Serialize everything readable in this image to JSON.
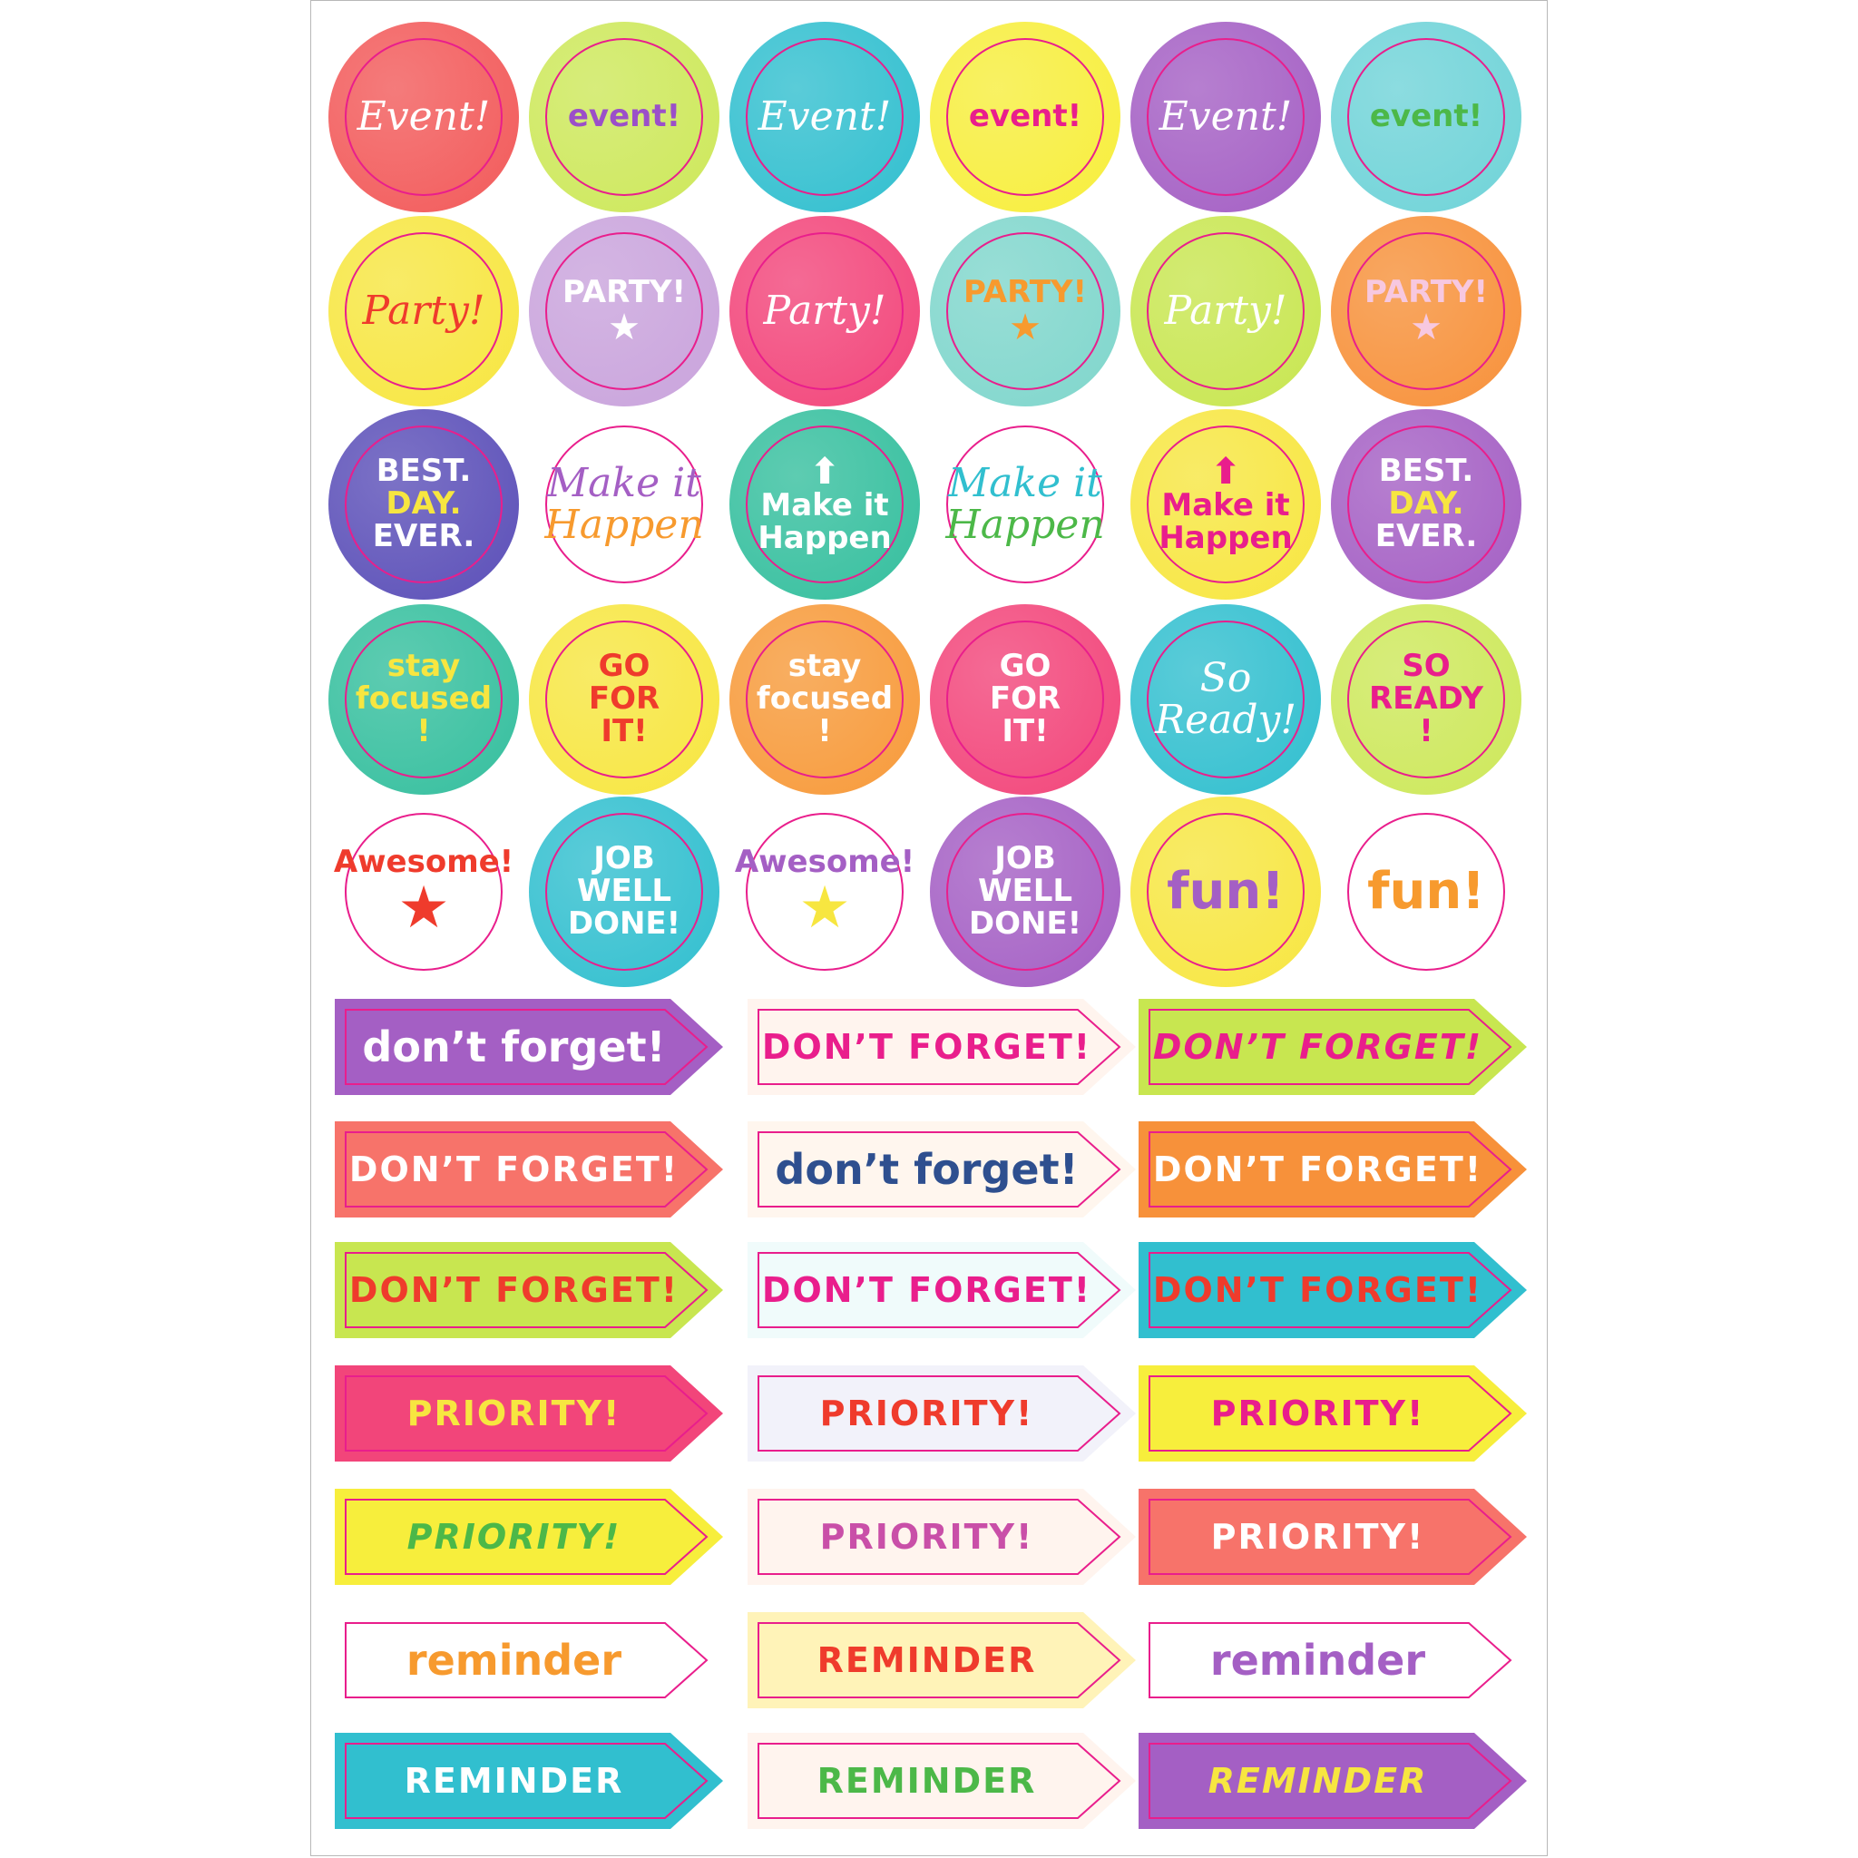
{
  "ring_color": "#e91e8c",
  "circles": [
    [
      {
        "lines": [
          "Event!"
        ],
        "bg": "#f25a5a",
        "color": "#ffffff",
        "style": "script"
      },
      {
        "lines": [
          "event!"
        ],
        "bg": "#cde85a",
        "color": "#9b4fc9",
        "style": "bold"
      },
      {
        "lines": [
          "Event!"
        ],
        "bg": "#31bfcf",
        "color": "#ffffff",
        "style": "script"
      },
      {
        "lines": [
          "event!"
        ],
        "bg": "#f7ee3c",
        "color": "#e91e8c",
        "style": "bold"
      },
      {
        "lines": [
          "Event!"
        ],
        "bg": "#a45fc4",
        "color": "#ffffff",
        "style": "script"
      },
      {
        "lines": [
          "event!"
        ],
        "bg": "#6fd3d8",
        "color": "#4cb848",
        "style": "bold"
      }
    ],
    [
      {
        "lines": [
          "Party!"
        ],
        "bg": "#f7e640",
        "color": "#ef3b2c",
        "style": "script"
      },
      {
        "lines": [
          "PARTY!"
        ],
        "bg": "#c9a3dc",
        "color": "#ffffff",
        "style": "bold",
        "icon": "star-icon"
      },
      {
        "lines": [
          "Party!"
        ],
        "bg": "#f2457a",
        "color": "#ffffff",
        "style": "script"
      },
      {
        "lines": [
          "PARTY!"
        ],
        "bg": "#7fd6cc",
        "color": "#f79a2e",
        "style": "bold",
        "icon": "star-icon"
      },
      {
        "lines": [
          "Party!"
        ],
        "bg": "#c8e650",
        "color": "#ffffff",
        "style": "script"
      },
      {
        "lines": [
          "PARTY!"
        ],
        "bg": "#f7913a",
        "color": "#f7c8e0",
        "style": "bold",
        "icon": "star-icon"
      }
    ],
    [
      {
        "lines": [
          "BEST.",
          "DAY.",
          "EVER."
        ],
        "bg": "#5b4fb8",
        "color": "#ffffff",
        "accent": "#f7e640",
        "style": "bold"
      },
      {
        "lines": [
          "Make it",
          "Happen"
        ],
        "bg": "#ffffff",
        "color": "#a45fc4",
        "accent": "#f79a2e",
        "style": "script"
      },
      {
        "lines": [
          "Make it",
          "Happen"
        ],
        "bg": "#35bf9e",
        "color": "#ffffff",
        "style": "bold",
        "icon": "arrow-up-icon"
      },
      {
        "lines": [
          "Make it",
          "Happen"
        ],
        "bg": "#ffffff",
        "color": "#31bfcf",
        "accent": "#4cb848",
        "style": "script"
      },
      {
        "lines": [
          "Make it",
          "Happen"
        ],
        "bg": "#f7e640",
        "color": "#e91e8c",
        "style": "bold",
        "icon": "arrow-up-icon"
      },
      {
        "lines": [
          "BEST.",
          "DAY.",
          "EVER."
        ],
        "bg": "#a45fc4",
        "color": "#ffffff",
        "accent": "#f7e640",
        "style": "bold"
      }
    ],
    [
      {
        "lines": [
          "stay",
          "focused",
          "!"
        ],
        "bg": "#35bf9e",
        "color": "#f7e640",
        "style": "bold"
      },
      {
        "lines": [
          "GO",
          "FOR",
          "IT!"
        ],
        "bg": "#f7e640",
        "color": "#ef3b2c",
        "style": "bold"
      },
      {
        "lines": [
          "stay",
          "focused",
          "!"
        ],
        "bg": "#f79a3a",
        "color": "#ffffff",
        "style": "bold"
      },
      {
        "lines": [
          "GO",
          "FOR",
          "IT!"
        ],
        "bg": "#f2457a",
        "color": "#ffffff",
        "style": "bold"
      },
      {
        "lines": [
          "So",
          "Ready!"
        ],
        "bg": "#31bfcf",
        "color": "#ffffff",
        "style": "script"
      },
      {
        "lines": [
          "SO",
          "READY",
          "!"
        ],
        "bg": "#cde85a",
        "color": "#e91e8c",
        "style": "bold"
      }
    ],
    [
      {
        "lines": [
          "Awesome!"
        ],
        "bg": "#ffffff",
        "color": "#ef3b2c",
        "style": "bold",
        "icon": "star-icon",
        "icon_color": "#ef3b2c"
      },
      {
        "lines": [
          "JOB",
          "WELL",
          "DONE!"
        ],
        "bg": "#31bfcf",
        "color": "#ffffff",
        "style": "bold"
      },
      {
        "lines": [
          "Awesome!"
        ],
        "bg": "#ffffff",
        "color": "#a45fc4",
        "style": "bold",
        "icon": "star-icon",
        "icon_color": "#f7e640"
      },
      {
        "lines": [
          "JOB",
          "WELL",
          "DONE!"
        ],
        "bg": "#a45fc4",
        "color": "#ffffff",
        "style": "bold"
      },
      {
        "lines": [
          "fun!"
        ],
        "bg": "#f7e640",
        "color": "#a45fc4",
        "style": "big"
      },
      {
        "lines": [
          "fun!"
        ],
        "bg": "#ffffff",
        "color": "#f79a2e",
        "style": "big"
      }
    ]
  ],
  "banners": [
    [
      {
        "text": "don’t forget!",
        "bg": "#a45fc4",
        "color": "#ffffff",
        "style": "lower"
      },
      {
        "text": "DON’T FORGET!",
        "bg": "#fff4ee",
        "color": "#e91e8c",
        "style": "caps"
      },
      {
        "text": "DON’T FORGET!",
        "bg": "#c8e650",
        "color": "#e91e8c",
        "style": "italic"
      }
    ],
    [
      {
        "text": "DON’T FORGET!",
        "bg": "#f7736a",
        "color": "#ffffff",
        "style": "caps"
      },
      {
        "text": "don’t forget!",
        "bg": "#fff6ee",
        "color": "#2e4f8f",
        "style": "lower"
      },
      {
        "text": "DON’T FORGET!",
        "bg": "#f7913a",
        "color": "#ffffff",
        "style": "caps"
      }
    ],
    [
      {
        "text": "DON’T FORGET!",
        "bg": "#c8e650",
        "color": "#ef3b2c",
        "style": "caps"
      },
      {
        "text": "DON’T FORGET!",
        "bg": "#f0fbfb",
        "color": "#e91e8c",
        "style": "caps"
      },
      {
        "text": "DON’T FORGET!",
        "bg": "#31bfcf",
        "color": "#ef3b2c",
        "style": "caps"
      }
    ],
    [
      {
        "text": "PRIORITY!",
        "bg": "#f2457a",
        "color": "#f7e640",
        "style": "caps"
      },
      {
        "text": "PRIORITY!",
        "bg": "#f2f2fa",
        "color": "#ef3b2c",
        "style": "caps"
      },
      {
        "text": "PRIORITY!",
        "bg": "#f7ee3c",
        "color": "#e91e8c",
        "style": "caps"
      }
    ],
    [
      {
        "text": "PRIORITY!",
        "bg": "#f7ee3c",
        "color": "#4cb848",
        "style": "italic"
      },
      {
        "text": "PRIORITY!",
        "bg": "#fff4ee",
        "color": "#c94fa8",
        "style": "caps"
      },
      {
        "text": "PRIORITY!",
        "bg": "#f7736a",
        "color": "#ffffff",
        "style": "caps"
      }
    ],
    [
      {
        "text": "reminder",
        "bg": "#ffffff",
        "color": "#f79a2e",
        "style": "lower"
      },
      {
        "text": "REMINDER",
        "bg": "#fff3b8",
        "color": "#ef3b2c",
        "style": "caps"
      },
      {
        "text": "reminder",
        "bg": "#ffffff",
        "color": "#a45fc4",
        "style": "lower"
      }
    ],
    [
      {
        "text": "REMINDER",
        "bg": "#31bfcf",
        "color": "#ffffff",
        "style": "caps"
      },
      {
        "text": "REMINDER",
        "bg": "#fff4ee",
        "color": "#4cb848",
        "style": "caps"
      },
      {
        "text": "REMINDER",
        "bg": "#a45fc4",
        "color": "#f7e640",
        "style": "italic"
      }
    ]
  ]
}
